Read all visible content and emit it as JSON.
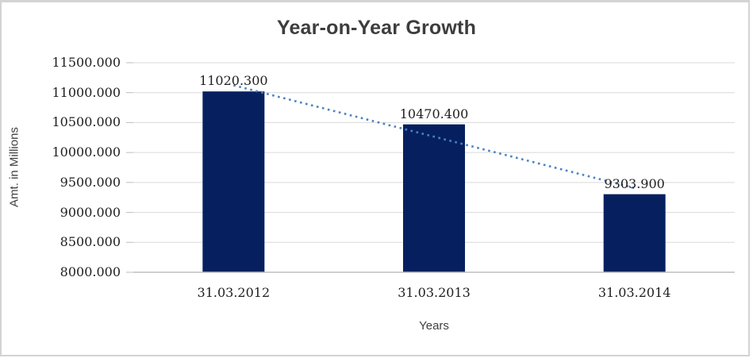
{
  "page": {
    "background": "#ffffff",
    "border_color": "#d3d3d3"
  },
  "chart_data": {
    "type": "bar",
    "title": "Year-on-Year Growth",
    "xlabel": "Years",
    "ylabel": "Amt. in Millions",
    "categories": [
      "31.03.2012",
      "31.03.2013",
      "31.03.2014"
    ],
    "values": [
      11020.3,
      10470.4,
      9303.9
    ],
    "data_labels": [
      "11020.300",
      "10470.400",
      "9303.900"
    ],
    "ylim": [
      8000,
      11500
    ],
    "ytick_step": 500,
    "ytick_labels": [
      "8000.000",
      "8500.000",
      "9000.000",
      "9500.000",
      "10000.000",
      "10500.000",
      "11000.000",
      "11500.000"
    ],
    "grid": true,
    "legend": "none",
    "bar_color": "#06205f",
    "trendline": {
      "type": "linear",
      "style": "dotted",
      "color": "#4a82c4",
      "endpoint_values": [
        11123,
        9407
      ]
    },
    "colors": {
      "gridline": "#d9d9d9",
      "axis_line": "#bdbdbd",
      "tick_mark": "#bdbdbd",
      "title": "#3d3d3d",
      "axis_title": "#404040",
      "tick_label": "#1f1f1f"
    }
  }
}
